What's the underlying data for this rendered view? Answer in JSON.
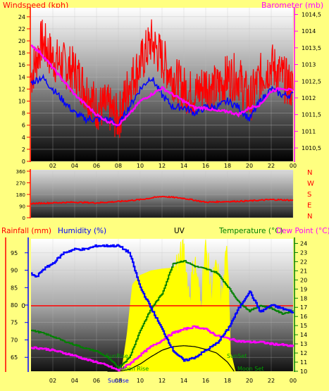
{
  "colors": {
    "background": "#ffff80",
    "windspeed": "#ff0000",
    "windspeed_avg": "#0000ff",
    "barometer": "#ff00ff",
    "direction": "#ff0000",
    "humidity": "#0000ff",
    "temperature": "#008000",
    "dewpoint": "#ff00ff",
    "uv": "#ffff00",
    "rainfall": "#ff0000",
    "solar": "#000000",
    "axis_red": "#ff0000",
    "axis_magenta": "#ff00ff",
    "axis_blue": "#0000ff",
    "axis_green": "#008000"
  },
  "header": {
    "windspeed_title": "Windspeed (kph)",
    "barometer_title": "Barometer (mb)"
  },
  "chart_data": [
    {
      "type": "line",
      "title": "Windspeed (kph)",
      "right_title": "Barometer (mb)",
      "x_ticks": [
        "02",
        "04",
        "06",
        "08",
        "10",
        "12",
        "14",
        "16",
        "18",
        "20",
        "22",
        "00"
      ],
      "y_left_ticks": [
        "0",
        "2",
        "4",
        "6",
        "8",
        "10",
        "12",
        "14",
        "16",
        "18",
        "20",
        "22",
        "24"
      ],
      "y_left_range": [
        0,
        25.5
      ],
      "y_right_ticks": [
        "1010,5",
        "1011",
        "1011,5",
        "1012",
        "1012,5",
        "1013",
        "1013,5",
        "1014",
        "1014,5"
      ],
      "y_right_range": [
        1010.1,
        1014.7
      ],
      "x_range": [
        0,
        24
      ],
      "grid": true,
      "series": [
        {
          "name": "gust",
          "axis": "left",
          "x": [
            0,
            1,
            2,
            3,
            4,
            5,
            6,
            7,
            8,
            9,
            10,
            11,
            12,
            13,
            14,
            15,
            16,
            17,
            18,
            19,
            20,
            21,
            22,
            23,
            24
          ],
          "values": [
            16,
            22,
            19,
            18,
            17,
            14,
            11,
            11,
            9,
            15,
            18,
            22,
            19,
            16,
            14,
            13,
            15,
            14,
            16,
            16,
            12,
            16,
            18,
            16,
            14
          ]
        },
        {
          "name": "average",
          "axis": "left",
          "x": [
            0,
            1,
            2,
            3,
            4,
            5,
            6,
            7,
            8,
            9,
            10,
            11,
            12,
            13,
            14,
            15,
            16,
            17,
            18,
            19,
            20,
            21,
            22,
            23,
            24
          ],
          "values": [
            13,
            14,
            12,
            10,
            8,
            7,
            7,
            7,
            6,
            9,
            12,
            14,
            11,
            9,
            9,
            8,
            9,
            9,
            10,
            9,
            7,
            10,
            12,
            11,
            11
          ]
        },
        {
          "name": "barometer",
          "axis": "right",
          "x": [
            0,
            1,
            2,
            3,
            4,
            5,
            6,
            7,
            8,
            9,
            10,
            11,
            12,
            13,
            14,
            15,
            16,
            17,
            18,
            19,
            20,
            21,
            22,
            23,
            24
          ],
          "values": [
            1013.6,
            1013.3,
            1012.9,
            1012.5,
            1012.1,
            1011.8,
            1011.5,
            1011.3,
            1011.2,
            1011.5,
            1011.9,
            1012.1,
            1012.3,
            1012.1,
            1011.9,
            1011.7,
            1011.7,
            1011.6,
            1011.6,
            1011.5,
            1011.7,
            1011.8,
            1012.2,
            1012.3,
            1012.2
          ]
        }
      ]
    },
    {
      "type": "line",
      "title": "",
      "x_range": [
        0,
        24
      ],
      "y_left_ticks": [
        "0",
        "90",
        "180",
        "270",
        "360"
      ],
      "y_range": [
        0,
        360
      ],
      "y_right_labels": [
        "N",
        "W",
        "S",
        "E",
        "N"
      ],
      "grid": true,
      "series": [
        {
          "name": "direction",
          "x": [
            0,
            2,
            4,
            6,
            8,
            10,
            12,
            14,
            16,
            18,
            20,
            22,
            24
          ],
          "values": [
            110,
            115,
            120,
            115,
            125,
            140,
            165,
            150,
            120,
            125,
            130,
            140,
            135
          ]
        }
      ]
    },
    {
      "type": "line",
      "titles": {
        "rainfall": "Rainfall (mm)",
        "humidity": "Humidity (%)",
        "uv": "UV",
        "temperature": "Temperature (°C)",
        "dewpoint": "Dew Point (°C)"
      },
      "x_ticks": [
        "02",
        "04",
        "06",
        "08",
        "10",
        "12",
        "14",
        "16",
        "18",
        "20",
        "22",
        "00"
      ],
      "x_range": [
        0,
        24
      ],
      "humidity_ticks": [
        "65",
        "70",
        "75",
        "80",
        "85",
        "90",
        "95"
      ],
      "humidity_range": [
        61,
        99
      ],
      "rain_tick": "0",
      "rain_value": 0,
      "temperature_ticks": [
        "10",
        "11",
        "12",
        "13",
        "14",
        "15",
        "16",
        "17",
        "18",
        "19",
        "20",
        "21",
        "22",
        "23",
        "24"
      ],
      "temperature_range": [
        10,
        24.5
      ],
      "annotations": [
        "SunRise",
        "Sunrise",
        "Moon Rise",
        "SunSet",
        "Moon Set"
      ],
      "grid": true,
      "series": [
        {
          "name": "humidity",
          "axis": "humidity",
          "x": [
            0,
            0.5,
            1,
            2,
            3,
            4,
            5,
            6,
            7,
            8,
            9,
            9.5,
            10,
            11,
            12,
            13,
            14,
            15,
            16,
            17,
            18,
            19,
            20,
            21,
            22,
            23,
            24
          ],
          "values": [
            89,
            88,
            90,
            92,
            95,
            96,
            96,
            97,
            97,
            97,
            95,
            90,
            85,
            79,
            73,
            67,
            64,
            65,
            67,
            69,
            73,
            79,
            84,
            78,
            80,
            79,
            78
          ]
        },
        {
          "name": "temperature",
          "axis": "temperature",
          "x": [
            0,
            1,
            2,
            3,
            4,
            5,
            6,
            7,
            8,
            9,
            10,
            11,
            12,
            13,
            14,
            15,
            16,
            17,
            18,
            19,
            20,
            21,
            22,
            23,
            24
          ],
          "values": [
            14.5,
            14.2,
            13.8,
            13.3,
            12.9,
            12.5,
            12.2,
            11.5,
            10.4,
            11.5,
            14.5,
            16.9,
            18.5,
            21.8,
            22.1,
            21.5,
            21.2,
            20.8,
            19.3,
            17.6,
            16.6,
            17.2,
            16.9,
            16.3,
            16.6
          ]
        },
        {
          "name": "dewpoint",
          "axis": "temperature",
          "x": [
            0,
            1,
            2,
            3,
            4,
            5,
            6,
            7,
            8,
            9,
            10,
            11,
            12,
            13,
            14,
            15,
            16,
            17,
            18,
            19,
            20,
            21,
            22,
            23,
            24
          ],
          "values": [
            12.6,
            12.5,
            12.3,
            12.0,
            11.7,
            11.3,
            11.0,
            10.6,
            10.1,
            10.8,
            11.8,
            12.7,
            13.4,
            14.2,
            14.6,
            14.9,
            14.6,
            13.9,
            13.6,
            13.3,
            13.2,
            13.2,
            13.0,
            12.9,
            12.7
          ]
        },
        {
          "name": "uv",
          "axis": "temperature",
          "x": [
            8.3,
            8.8,
            9.3,
            10,
            11,
            12,
            13,
            13.5,
            14,
            14.5,
            15,
            15.5,
            16,
            16.5,
            17,
            17.5,
            18,
            18.3,
            18.7
          ],
          "values": [
            10,
            14,
            19.5,
            20.5,
            21,
            21.2,
            21.3,
            21.8,
            23,
            18,
            22,
            17,
            23.5,
            18.5,
            21,
            17.5,
            23.6,
            12,
            10
          ]
        },
        {
          "name": "solar",
          "axis": "temperature",
          "x": [
            7,
            8,
            9,
            10,
            11,
            12,
            13,
            14,
            15,
            16,
            17,
            18,
            18.6
          ],
          "values": [
            10,
            10,
            10.2,
            10.8,
            11.6,
            12.3,
            12.7,
            12.8,
            12.7,
            12.4,
            12,
            11,
            10
          ]
        }
      ]
    }
  ]
}
